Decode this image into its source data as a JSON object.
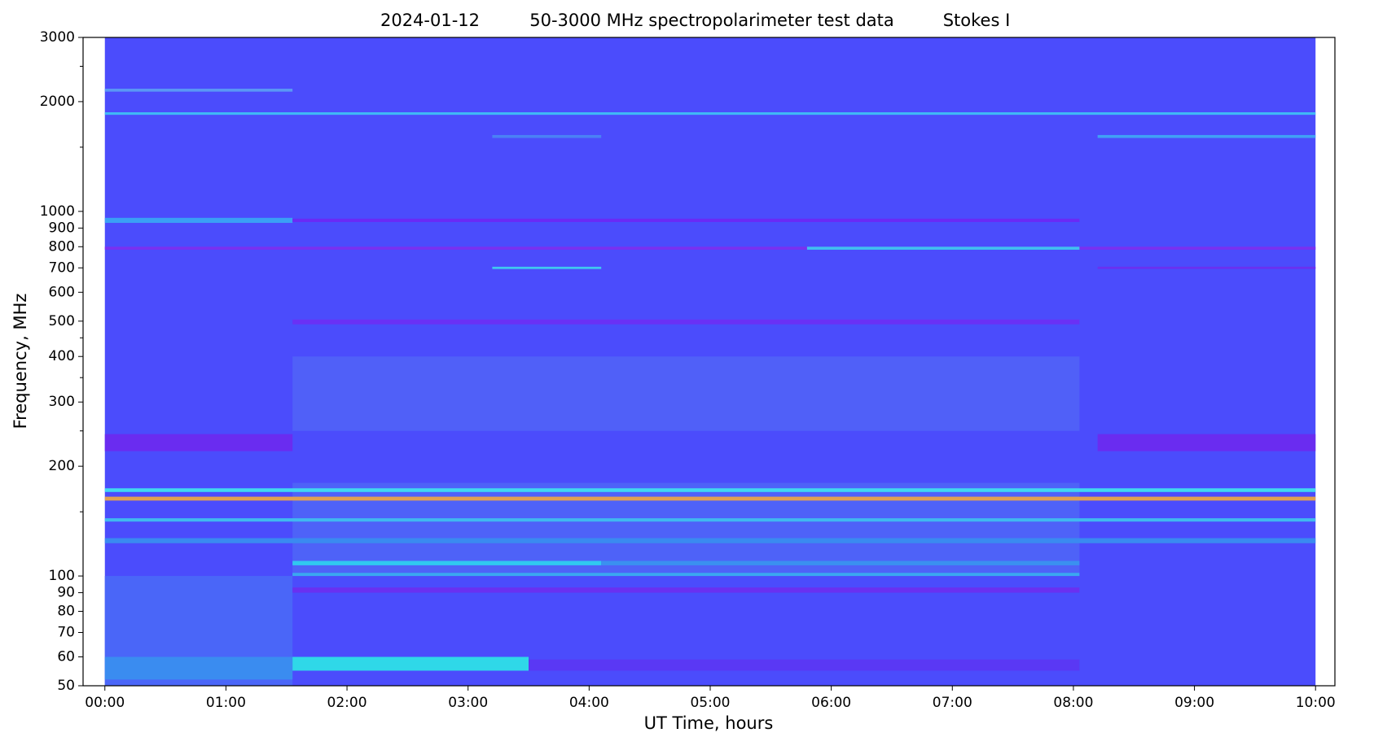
{
  "chart_data": {
    "type": "spectrogram",
    "title": [
      "2024-01-12",
      "50-3000 MHz spectropolarimeter test data",
      "Stokes I"
    ],
    "xlabel": "UT Time, hours",
    "ylabel": "Frequency, MHz",
    "xlim": [
      -0.18,
      10.16
    ],
    "ylim": [
      50,
      3000
    ],
    "yscale": "log",
    "xticks": [
      {
        "value": 0,
        "label": "00:00"
      },
      {
        "value": 1,
        "label": "01:00"
      },
      {
        "value": 2,
        "label": "02:00"
      },
      {
        "value": 3,
        "label": "03:00"
      },
      {
        "value": 4,
        "label": "04:00"
      },
      {
        "value": 5,
        "label": "05:00"
      },
      {
        "value": 6,
        "label": "06:00"
      },
      {
        "value": 7,
        "label": "07:00"
      },
      {
        "value": 8,
        "label": "08:00"
      },
      {
        "value": 9,
        "label": "09:00"
      },
      {
        "value": 10,
        "label": "10:00"
      }
    ],
    "yticks": [
      50,
      60,
      70,
      80,
      90,
      100,
      200,
      300,
      400,
      500,
      600,
      700,
      800,
      900,
      1000,
      2000,
      3000
    ],
    "yminor": [
      150,
      250,
      350,
      450,
      1500,
      2500
    ],
    "background": {
      "t": [
        0,
        10
      ],
      "f": [
        50,
        3000
      ],
      "color": "#4b4cfc"
    },
    "features": [
      {
        "t": [
          0,
          1.55
        ],
        "f": [
          50,
          100
        ],
        "color": "#4a66f8"
      },
      {
        "t": [
          1.55,
          8.05
        ],
        "f": [
          100,
          180
        ],
        "color": "#4e62f8"
      },
      {
        "t": [
          1.55,
          8.05
        ],
        "f": [
          250,
          400
        ],
        "color": "#5060f8"
      },
      {
        "t": [
          0,
          1.55
        ],
        "f": [
          52,
          60
        ],
        "color": "#3a8cf0"
      },
      {
        "t": [
          1.55,
          3.5
        ],
        "f": [
          55,
          60
        ],
        "color": "#2fd8e8"
      },
      {
        "t": [
          3.5,
          8.05
        ],
        "f": [
          55,
          59
        ],
        "color": "#5a38f4"
      },
      {
        "t": [
          8.2,
          10
        ],
        "f": [
          220,
          245
        ],
        "color": "#6a2cf0"
      },
      {
        "t": [
          0,
          1.55
        ],
        "f": [
          220,
          245
        ],
        "color": "#6a2cf0"
      },
      {
        "t": [
          1.55,
          8.05
        ],
        "f": [
          90,
          93
        ],
        "color": "#6a30f0"
      },
      {
        "t": [
          1.55,
          4.1
        ],
        "f": [
          107,
          110
        ],
        "color": "#30c8f0"
      },
      {
        "t": [
          4.1,
          8.05
        ],
        "f": [
          107,
          110
        ],
        "color": "#3a90f0"
      },
      {
        "t": [
          1.55,
          8.05
        ],
        "f": [
          100,
          102
        ],
        "color": "#3aa8f0"
      },
      {
        "t": [
          0,
          10
        ],
        "f": [
          123,
          127
        ],
        "color": "#3a8af0"
      },
      {
        "t": [
          0,
          10
        ],
        "f": [
          141,
          144
        ],
        "color": "#40b8f0"
      },
      {
        "t": [
          0,
          10
        ],
        "f": [
          161,
          165
        ],
        "color": "#e0a050"
      },
      {
        "t": [
          0,
          10
        ],
        "f": [
          170,
          174
        ],
        "color": "#40d8f0"
      },
      {
        "t": [
          1.55,
          8.05
        ],
        "f": [
          490,
          505
        ],
        "color": "#6a30f5"
      },
      {
        "t": [
          3.2,
          4.1
        ],
        "f": [
          695,
          705
        ],
        "color": "#40c8f0"
      },
      {
        "t": [
          0,
          10
        ],
        "f": [
          785,
          800
        ],
        "color": "#7a30f0"
      },
      {
        "t": [
          5.8,
          8.05
        ],
        "f": [
          785,
          800
        ],
        "color": "#40c0f0"
      },
      {
        "t": [
          0,
          1.55
        ],
        "f": [
          930,
          960
        ],
        "color": "#3aa0f5"
      },
      {
        "t": [
          1.55,
          8.05
        ],
        "f": [
          935,
          955
        ],
        "color": "#6a2af5"
      },
      {
        "t": [
          0,
          10
        ],
        "f": [
          1840,
          1870
        ],
        "color": "#40b8f5"
      },
      {
        "t": [
          0,
          1.55
        ],
        "f": [
          2130,
          2170
        ],
        "color": "#5a98f5"
      },
      {
        "t": [
          8.2,
          10
        ],
        "f": [
          1590,
          1620
        ],
        "color": "#40a0f5"
      },
      {
        "t": [
          3.2,
          4.1
        ],
        "f": [
          1590,
          1620
        ],
        "color": "#4a80f5"
      },
      {
        "t": [
          8.2,
          10
        ],
        "f": [
          695,
          705
        ],
        "color": "#6a30f0"
      }
    ]
  }
}
